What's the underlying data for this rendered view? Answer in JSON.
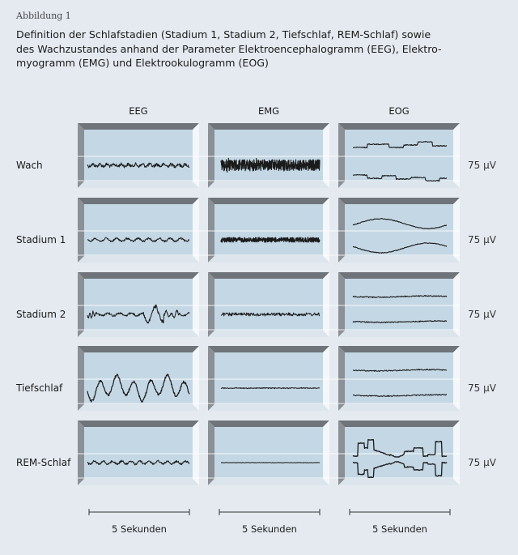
{
  "figure_label": "Abbildung 1",
  "title": "Definition der Schlafstadien (Stadium 1, Stadium 2, Tiefschlaf, REM-Schlaf) sowie\ndes Wachzustandes anhand der Parameter Elektroencephalogramm (EEG), Elektro-\nmyogramm (EMG) und Elektrookulogramm (EOG)",
  "columns": [
    "EEG",
    "EMG",
    "EOG"
  ],
  "rows": [
    {
      "label": "Wach",
      "scale": "75 µV"
    },
    {
      "label": "Stadium 1",
      "scale": "75 µV"
    },
    {
      "label": "Stadium 2",
      "scale": "75 µV"
    },
    {
      "label": "Tiefschlaf",
      "scale": "75 µV"
    },
    {
      "label": "REM-Schlaf",
      "scale": "75 µV"
    }
  ],
  "time_bar_label": "5 Sekunden",
  "colors": {
    "background": "#e4eaf0",
    "panel_face": "#c4d7e4",
    "trace": "#1a1a1a",
    "guide_line": "#ffffff"
  }
}
